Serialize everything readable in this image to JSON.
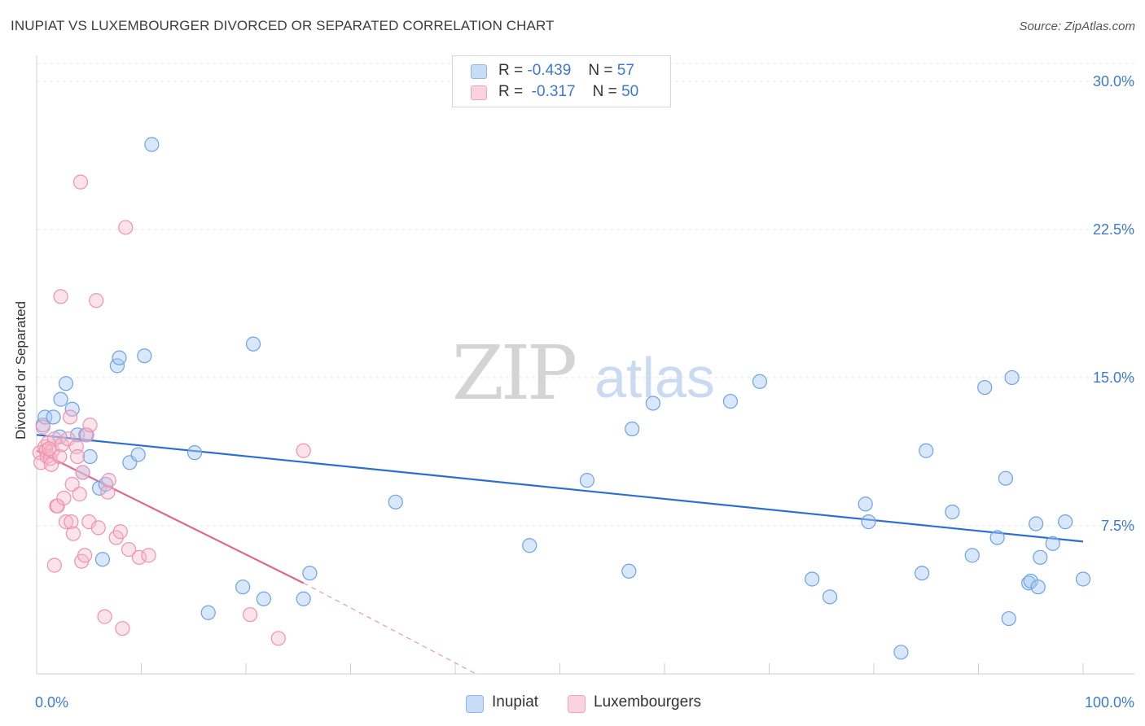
{
  "title": "INUPIAT VS LUXEMBOURGER DIVORCED OR SEPARATED CORRELATION CHART",
  "source": "Source: ZipAtlas.com",
  "watermark": {
    "zip": "ZIP",
    "atlas": "atlas"
  },
  "legend": {
    "rows": [
      {
        "r_label": "R =",
        "r_value": "-0.439",
        "n_label": "N =",
        "n_value": "57",
        "color": "#a9c9f2"
      },
      {
        "r_label": "R =",
        "r_value": "-0.317",
        "n_label": "N =",
        "n_value": "50",
        "color": "#f5b8ca"
      }
    ]
  },
  "bottom_legend": [
    {
      "label": "Inupiat",
      "color": "#a9c9f2"
    },
    {
      "label": "Luxembourgers",
      "color": "#f5b8ca"
    }
  ],
  "chart_data": {
    "type": "scatter",
    "title": "INUPIAT VS LUXEMBOURGER DIVORCED OR SEPARATED CORRELATION CHART",
    "xlabel": "",
    "ylabel": "Divorced or Separated",
    "xlim": [
      0,
      100
    ],
    "ylim": [
      0,
      30.9
    ],
    "x_tick_labels": [
      "0.0%",
      "100.0%"
    ],
    "y_ticks": [
      7.5,
      15.0,
      22.5,
      30.0
    ],
    "y_tick_labels": [
      "7.5%",
      "15.0%",
      "22.5%",
      "30.0%"
    ],
    "series": [
      {
        "name": "Inupiat",
        "color": "#6fa2e3",
        "line_color": "#2c6fd0",
        "trend": {
          "x": [
            0,
            100
          ],
          "y": [
            12.1,
            6.7
          ]
        },
        "points": [
          {
            "x": 0.6,
            "y": 12.6
          },
          {
            "x": 0.8,
            "y": 13.0
          },
          {
            "x": 1.6,
            "y": 13.0
          },
          {
            "x": 2.2,
            "y": 12.0
          },
          {
            "x": 2.3,
            "y": 13.9
          },
          {
            "x": 2.8,
            "y": 14.7
          },
          {
            "x": 3.4,
            "y": 13.4
          },
          {
            "x": 3.9,
            "y": 12.1
          },
          {
            "x": 4.4,
            "y": 10.2
          },
          {
            "x": 4.7,
            "y": 12.1
          },
          {
            "x": 5.1,
            "y": 11.0
          },
          {
            "x": 6.0,
            "y": 9.4
          },
          {
            "x": 6.3,
            "y": 5.8
          },
          {
            "x": 6.6,
            "y": 9.6
          },
          {
            "x": 7.7,
            "y": 15.6
          },
          {
            "x": 7.9,
            "y": 16.0
          },
          {
            "x": 8.9,
            "y": 10.7
          },
          {
            "x": 9.7,
            "y": 11.1
          },
          {
            "x": 10.3,
            "y": 16.1
          },
          {
            "x": 11.0,
            "y": 26.8
          },
          {
            "x": 15.1,
            "y": 11.2
          },
          {
            "x": 16.4,
            "y": 3.1
          },
          {
            "x": 19.7,
            "y": 4.4
          },
          {
            "x": 20.7,
            "y": 16.7
          },
          {
            "x": 21.7,
            "y": 3.8
          },
          {
            "x": 25.5,
            "y": 3.8
          },
          {
            "x": 26.1,
            "y": 5.1
          },
          {
            "x": 34.3,
            "y": 8.7
          },
          {
            "x": 47.1,
            "y": 6.5
          },
          {
            "x": 52.6,
            "y": 9.8
          },
          {
            "x": 56.6,
            "y": 5.2
          },
          {
            "x": 56.9,
            "y": 12.4
          },
          {
            "x": 58.9,
            "y": 13.7
          },
          {
            "x": 66.3,
            "y": 13.8
          },
          {
            "x": 69.1,
            "y": 14.8
          },
          {
            "x": 74.1,
            "y": 4.8
          },
          {
            "x": 75.8,
            "y": 3.9
          },
          {
            "x": 79.2,
            "y": 8.6
          },
          {
            "x": 79.5,
            "y": 7.7
          },
          {
            "x": 82.6,
            "y": 1.1
          },
          {
            "x": 84.6,
            "y": 5.1
          },
          {
            "x": 85.0,
            "y": 11.3
          },
          {
            "x": 87.5,
            "y": 8.2
          },
          {
            "x": 89.4,
            "y": 6.0
          },
          {
            "x": 90.6,
            "y": 14.5
          },
          {
            "x": 91.8,
            "y": 6.9
          },
          {
            "x": 92.6,
            "y": 9.9
          },
          {
            "x": 92.9,
            "y": 2.8
          },
          {
            "x": 93.2,
            "y": 15.0
          },
          {
            "x": 94.8,
            "y": 4.6
          },
          {
            "x": 95.0,
            "y": 4.7
          },
          {
            "x": 95.5,
            "y": 7.6
          },
          {
            "x": 95.7,
            "y": 4.4
          },
          {
            "x": 95.9,
            "y": 5.9
          },
          {
            "x": 97.1,
            "y": 6.6
          },
          {
            "x": 98.3,
            "y": 7.7
          },
          {
            "x": 100.0,
            "y": 4.8
          }
        ]
      },
      {
        "name": "Luxembourgers",
        "color": "#ef92ae",
        "line_color": "#e0668f",
        "trend": {
          "x": [
            0,
            25.5
          ],
          "y": [
            11.3,
            4.6
          ]
        },
        "trend_extension": {
          "x": [
            25.5,
            42.0
          ],
          "y": [
            4.6,
            0.0
          ]
        },
        "points": [
          {
            "x": 0.3,
            "y": 11.2
          },
          {
            "x": 0.4,
            "y": 10.7
          },
          {
            "x": 0.6,
            "y": 12.5
          },
          {
            "x": 0.8,
            "y": 11.5
          },
          {
            "x": 0.9,
            "y": 11.3
          },
          {
            "x": 1.0,
            "y": 11.0
          },
          {
            "x": 1.1,
            "y": 11.7
          },
          {
            "x": 1.3,
            "y": 10.9
          },
          {
            "x": 1.4,
            "y": 10.6
          },
          {
            "x": 1.5,
            "y": 11.3
          },
          {
            "x": 1.7,
            "y": 11.9
          },
          {
            "x": 1.7,
            "y": 5.5
          },
          {
            "x": 1.9,
            "y": 8.5
          },
          {
            "x": 2.0,
            "y": 8.5
          },
          {
            "x": 2.2,
            "y": 11.0
          },
          {
            "x": 2.3,
            "y": 19.1
          },
          {
            "x": 2.4,
            "y": 11.6
          },
          {
            "x": 2.6,
            "y": 8.9
          },
          {
            "x": 2.8,
            "y": 7.7
          },
          {
            "x": 3.0,
            "y": 11.9
          },
          {
            "x": 3.2,
            "y": 13.0
          },
          {
            "x": 3.3,
            "y": 7.7
          },
          {
            "x": 3.4,
            "y": 9.6
          },
          {
            "x": 3.5,
            "y": 7.1
          },
          {
            "x": 3.8,
            "y": 11.5
          },
          {
            "x": 3.9,
            "y": 11.0
          },
          {
            "x": 4.1,
            "y": 9.1
          },
          {
            "x": 4.2,
            "y": 24.9
          },
          {
            "x": 4.3,
            "y": 5.7
          },
          {
            "x": 4.4,
            "y": 10.2
          },
          {
            "x": 4.6,
            "y": 6.0
          },
          {
            "x": 4.8,
            "y": 12.1
          },
          {
            "x": 5.0,
            "y": 7.7
          },
          {
            "x": 5.1,
            "y": 12.6
          },
          {
            "x": 5.7,
            "y": 18.9
          },
          {
            "x": 5.9,
            "y": 7.4
          },
          {
            "x": 6.5,
            "y": 2.9
          },
          {
            "x": 6.8,
            "y": 9.2
          },
          {
            "x": 6.9,
            "y": 9.8
          },
          {
            "x": 7.6,
            "y": 6.9
          },
          {
            "x": 8.0,
            "y": 7.2
          },
          {
            "x": 8.2,
            "y": 2.3
          },
          {
            "x": 8.5,
            "y": 22.6
          },
          {
            "x": 8.8,
            "y": 6.3
          },
          {
            "x": 9.8,
            "y": 5.9
          },
          {
            "x": 10.7,
            "y": 6.0
          },
          {
            "x": 20.4,
            "y": 3.0
          },
          {
            "x": 23.1,
            "y": 1.8
          },
          {
            "x": 25.5,
            "y": 11.3
          },
          {
            "x": 1.2,
            "y": 11.4
          }
        ]
      }
    ]
  }
}
